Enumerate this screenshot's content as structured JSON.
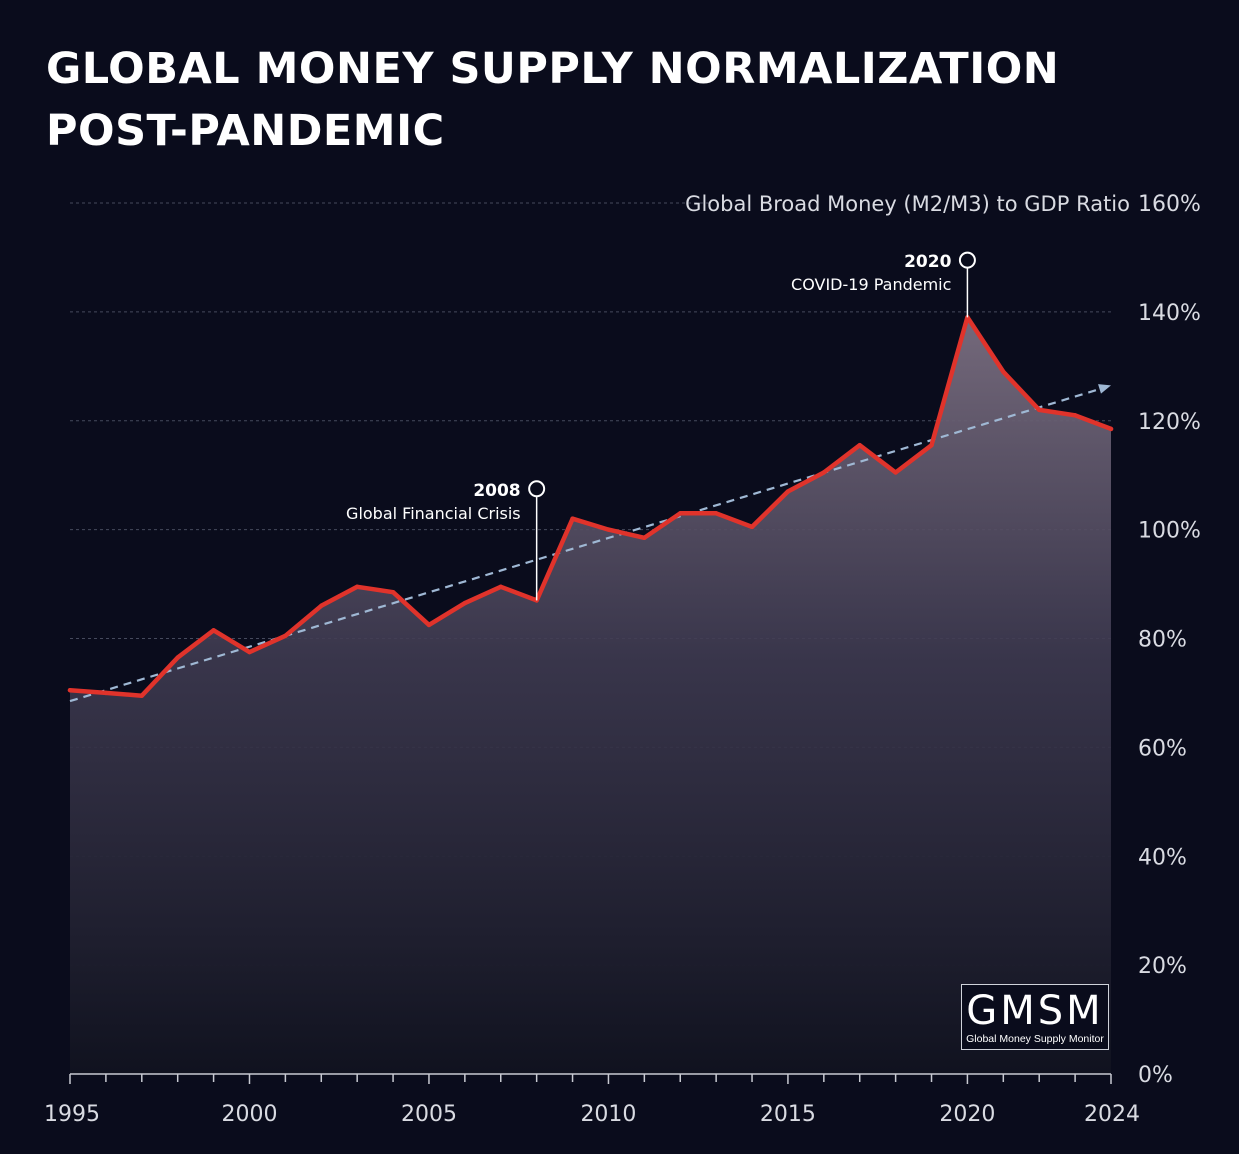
{
  "title": {
    "line1": "GLOBAL MONEY SUPPLY NORMALIZATION",
    "line2": "POST-PANDEMIC"
  },
  "logo": {
    "main": "GMSM",
    "sub": "Global Money Supply Monitor"
  },
  "colors": {
    "background": "#0a0c1c",
    "line": "#e0332b",
    "trend": "#9fb8d4",
    "grid": "#555a6e",
    "text": "#d9dbe2"
  },
  "chart_data": {
    "type": "area",
    "title": "GLOBAL MONEY SUPPLY NORMALIZATION POST-PANDEMIC",
    "ylabel": "Global Broad Money (M2/M3) to GDP Ratio",
    "xlabel": "",
    "xlim": [
      1995,
      2024
    ],
    "ylim": [
      0,
      160
    ],
    "x_ticks": [
      1995,
      2000,
      2005,
      2010,
      2015,
      2020,
      2024
    ],
    "y_ticks": [
      {
        "value": 0,
        "label": "0%"
      },
      {
        "value": 20,
        "label": "20%"
      },
      {
        "value": 40,
        "label": "40%"
      },
      {
        "value": 60,
        "label": "60%"
      },
      {
        "value": 80,
        "label": "80%"
      },
      {
        "value": 100,
        "label": "100%"
      },
      {
        "value": 120,
        "label": "120%"
      },
      {
        "value": 140,
        "label": "140%"
      },
      {
        "value": 160,
        "label": "160%"
      }
    ],
    "grid": true,
    "series": [
      {
        "name": "Global Broad Money (M2/M3) to GDP Ratio",
        "x": [
          1995,
          1996,
          1997,
          1998,
          1999,
          2000,
          2001,
          2002,
          2003,
          2004,
          2005,
          2006,
          2007,
          2008,
          2009,
          2010,
          2011,
          2012,
          2013,
          2014,
          2015,
          2016,
          2017,
          2018,
          2019,
          2020,
          2021,
          2022,
          2023,
          2024
        ],
        "values": [
          70.5,
          70,
          69.5,
          76.5,
          81.5,
          77.5,
          80.5,
          86,
          89.5,
          88.5,
          82.5,
          86.5,
          89.5,
          87,
          102,
          100,
          98.5,
          103,
          103,
          100.5,
          107,
          110.5,
          115.5,
          110.5,
          115.5,
          139,
          129,
          122,
          121,
          118.5
        ]
      }
    ],
    "trend": {
      "name": "Trend",
      "start": [
        1995,
        68.5
      ],
      "end": [
        2024,
        126.5
      ]
    },
    "annotations": [
      {
        "year": "2008",
        "label": "Global Financial Crisis",
        "x": 2008,
        "y": 87,
        "marker_y": 107.5
      },
      {
        "year": "2020",
        "label": "COVID-19 Pandemic",
        "x": 2020,
        "y": 139,
        "marker_y": 149.5
      }
    ]
  }
}
